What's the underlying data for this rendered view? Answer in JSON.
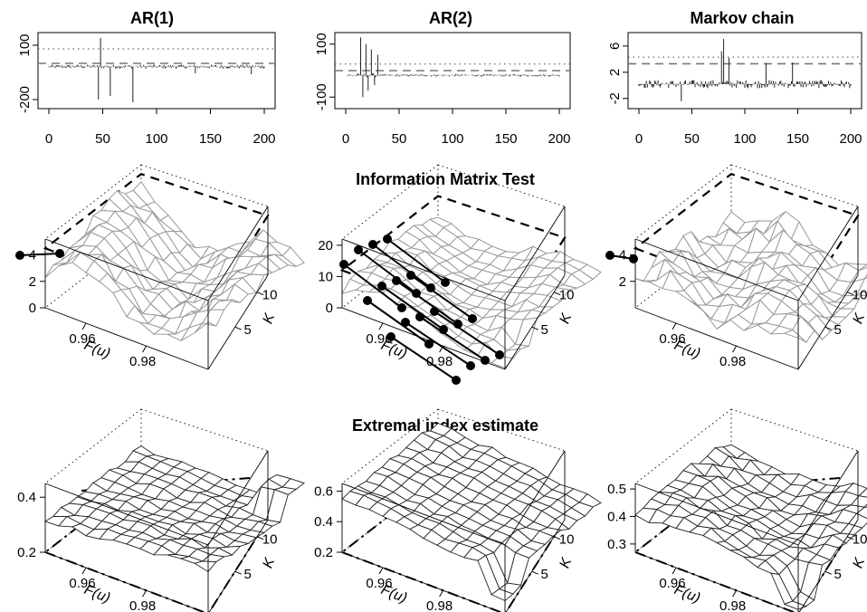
{
  "section_titles": {
    "info_matrix": "Information Matrix Test",
    "extremal": "Extremal index estimate"
  },
  "axis_labels": {
    "fu": "F(u)",
    "k": "K"
  },
  "chart_data": [
    {
      "id": "ts-ar1",
      "type": "bar",
      "title": "AR(1)",
      "x": [
        0,
        200
      ],
      "xticks": [
        0,
        50,
        100,
        150,
        200
      ],
      "ylim": [
        -230,
        150
      ],
      "yticks": [
        100,
        -200
      ],
      "reference_lines": [
        {
          "y": 80,
          "style": "dotted"
        },
        {
          "y": 0,
          "style": "dashed"
        }
      ],
      "spikes": [
        {
          "x": 48,
          "y": 140
        },
        {
          "x": 46,
          "y": -200
        },
        {
          "x": 57,
          "y": -180
        },
        {
          "x": 78,
          "y": -215
        },
        {
          "x": 136,
          "y": -55
        },
        {
          "x": 188,
          "y": -60
        }
      ]
    },
    {
      "id": "ts-ar2",
      "type": "bar",
      "title": "AR(2)",
      "x": [
        0,
        200
      ],
      "xticks": [
        0,
        50,
        100,
        150,
        200
      ],
      "ylim": [
        -130,
        130
      ],
      "yticks": [
        100,
        -100
      ],
      "reference_lines": [
        {
          "y": 25,
          "style": "dotted"
        },
        {
          "y": 0,
          "style": "dashed"
        }
      ],
      "spikes": [
        {
          "x": 14,
          "y": 125
        },
        {
          "x": 16,
          "y": -100
        },
        {
          "x": 19,
          "y": 100
        },
        {
          "x": 21,
          "y": -75
        },
        {
          "x": 24,
          "y": 80
        },
        {
          "x": 27,
          "y": -55
        },
        {
          "x": 30,
          "y": 60
        }
      ]
    },
    {
      "id": "ts-markov",
      "type": "bar",
      "title": "Markov chain",
      "x": [
        0,
        200
      ],
      "xticks": [
        0,
        50,
        100,
        150,
        200
      ],
      "ylim": [
        -3,
        7.5
      ],
      "yticks": [
        6,
        2,
        -2
      ],
      "reference_lines": [
        {
          "y": 4.3,
          "style": "dotted"
        },
        {
          "y": 3.3,
          "style": "dashed"
        }
      ],
      "spikes": [
        {
          "x": 80,
          "y": 7.1
        },
        {
          "x": 78,
          "y": 5.2
        },
        {
          "x": 85,
          "y": 4.2
        },
        {
          "x": 40,
          "y": -2.4
        },
        {
          "x": 120,
          "y": 3.4
        },
        {
          "x": 145,
          "y": 3.5
        }
      ]
    },
    {
      "id": "imt-ar1",
      "type": "surface",
      "group": "Information Matrix Test",
      "zlim": [
        0,
        5.2
      ],
      "zticks": [
        0,
        2,
        4
      ],
      "fu_ticks": [
        "0.96",
        "0.98"
      ],
      "k_ticks": [
        "5",
        "10"
      ],
      "threshold_plane": 4.5,
      "marked_points": [
        [
          0,
          13,
          4.5
        ],
        [
          0,
          12,
          4.5
        ]
      ]
    },
    {
      "id": "imt-ar2",
      "type": "surface",
      "group": "Information Matrix Test",
      "zlim": [
        0,
        22
      ],
      "zticks": [
        0,
        10,
        20
      ],
      "fu_ticks": [
        "0.96",
        "0.98"
      ],
      "k_ticks": [
        "5",
        "10"
      ],
      "threshold_plane": 12,
      "marked_points": "black highlighted block at low F(u), values 12 to 21"
    },
    {
      "id": "imt-markov",
      "type": "surface",
      "group": "Information Matrix Test",
      "zlim": [
        0,
        5.2
      ],
      "zticks": [
        2,
        4
      ],
      "fu_ticks": [
        "0.96",
        "0.98"
      ],
      "k_ticks": [
        "5",
        "10"
      ],
      "threshold_plane": 4.5,
      "marked_points": [
        [
          0,
          13,
          4.9
        ],
        [
          1,
          13,
          4.1
        ]
      ]
    },
    {
      "id": "ei-ar1",
      "type": "surface",
      "group": "Extremal index estimate",
      "zlim": [
        0.2,
        0.45
      ],
      "zticks": [
        "0.2",
        "0.4"
      ],
      "fu_ticks": [
        "0.96",
        "0.98"
      ],
      "k_ticks": [
        "5",
        "10"
      ]
    },
    {
      "id": "ei-ar2",
      "type": "surface",
      "group": "Extremal index estimate",
      "zlim": [
        0.2,
        0.65
      ],
      "zticks": [
        "0.2",
        "0.4",
        "0.6"
      ],
      "fu_ticks": [
        "0.96",
        "0.98"
      ],
      "k_ticks": [
        "5",
        "10"
      ]
    },
    {
      "id": "ei-markov",
      "type": "surface",
      "group": "Extremal index estimate",
      "zlim": [
        0.27,
        0.52
      ],
      "zticks": [
        "0.3",
        "0.4",
        "0.5"
      ],
      "fu_ticks": [
        "0.96",
        "0.98"
      ],
      "k_ticks": [
        "5",
        "10"
      ]
    }
  ]
}
